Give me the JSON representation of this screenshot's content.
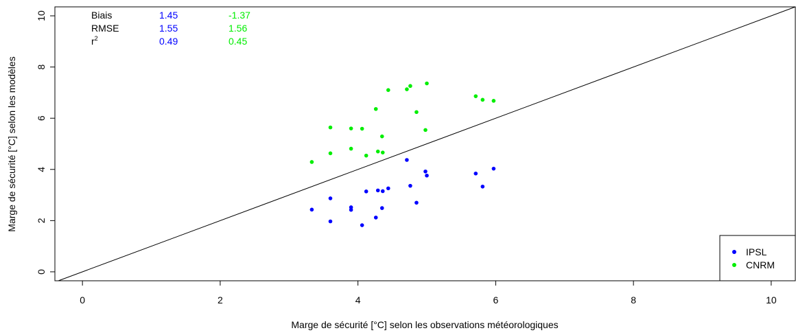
{
  "chart_data": {
    "type": "scatter",
    "title": "",
    "xlabel": "Marge de sécurité [°C] selon les observations météorologiques",
    "ylabel": "Marge de sécurité [°C] selon les modèles",
    "xlim": [
      -0.4,
      10.35
    ],
    "ylim": [
      -0.35,
      10.35
    ],
    "x_ticks": [
      0,
      2,
      4,
      6,
      8,
      10
    ],
    "y_ticks": [
      0,
      2,
      4,
      6,
      8,
      10
    ],
    "reference_line": "y = x",
    "legend_position": "bottom-right",
    "stats": {
      "header_labels": [
        "Biais",
        "RMSE",
        "r2"
      ],
      "columns": [
        {
          "color": "#0000ff",
          "values": [
            "1.45",
            "1.55",
            "0.49"
          ]
        },
        {
          "color": "#00ee00",
          "values": [
            "-1.37",
            "1.56",
            "0.45"
          ]
        }
      ]
    },
    "series": [
      {
        "name": "IPSL",
        "color": "#0000ff",
        "points": [
          [
            3.33,
            2.43
          ],
          [
            3.6,
            1.97
          ],
          [
            3.6,
            2.87
          ],
          [
            3.9,
            2.52
          ],
          [
            3.9,
            2.42
          ],
          [
            4.06,
            1.82
          ],
          [
            4.12,
            3.14
          ],
          [
            4.26,
            2.12
          ],
          [
            4.29,
            3.18
          ],
          [
            4.35,
            2.49
          ],
          [
            4.36,
            3.15
          ],
          [
            4.44,
            3.26
          ],
          [
            4.71,
            4.37
          ],
          [
            4.76,
            3.36
          ],
          [
            4.85,
            2.7
          ],
          [
            4.98,
            3.92
          ],
          [
            5.0,
            3.76
          ],
          [
            5.71,
            3.84
          ],
          [
            5.81,
            3.33
          ],
          [
            5.97,
            4.03
          ]
        ]
      },
      {
        "name": "CNRM",
        "color": "#00ee00",
        "points": [
          [
            3.33,
            4.29
          ],
          [
            3.6,
            5.64
          ],
          [
            3.6,
            4.63
          ],
          [
            3.9,
            5.6
          ],
          [
            3.9,
            4.81
          ],
          [
            4.06,
            5.59
          ],
          [
            4.12,
            4.54
          ],
          [
            4.26,
            6.36
          ],
          [
            4.29,
            4.7
          ],
          [
            4.35,
            5.29
          ],
          [
            4.36,
            4.66
          ],
          [
            4.44,
            7.1
          ],
          [
            4.71,
            7.13
          ],
          [
            4.76,
            7.26
          ],
          [
            4.85,
            6.24
          ],
          [
            4.98,
            5.54
          ],
          [
            5.0,
            7.36
          ],
          [
            5.71,
            6.86
          ],
          [
            5.81,
            6.72
          ],
          [
            5.97,
            6.68
          ]
        ]
      }
    ]
  }
}
